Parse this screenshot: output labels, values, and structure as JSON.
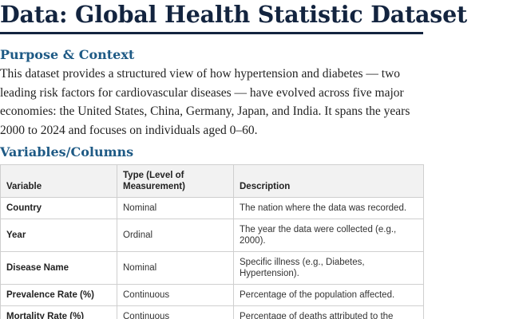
{
  "title": "Data: Global Health Statistic Dataset",
  "purpose": {
    "heading": "Purpose & Context",
    "text": "This dataset provides a structured view of how hypertension and diabetes — two leading risk factors for cardiovascular diseases — have evolved across five major economies: the United States, China, Germany, Japan, and India. It spans the years 2000 to 2024 and focuses on individuals aged 0–60."
  },
  "variables": {
    "heading": "Variables/Columns",
    "columns": [
      "Variable",
      "Type (Level of Measurement)",
      "Description"
    ],
    "rows": [
      {
        "variable": "Country",
        "type": "Nominal",
        "description": "The nation where the data was recorded."
      },
      {
        "variable": "Year",
        "type": "Ordinal",
        "description": "The year the data were collected (e.g., 2000)."
      },
      {
        "variable": "Disease Name",
        "type": "Nominal",
        "description": "Specific illness (e.g., Diabetes, Hypertension)."
      },
      {
        "variable": "Prevalence Rate (%)",
        "type": "Continuous",
        "description": "Percentage of the population affected."
      },
      {
        "variable": "Mortality Rate (%)",
        "type": "Continuous",
        "description": "Percentage of deaths attributed to the"
      }
    ]
  }
}
